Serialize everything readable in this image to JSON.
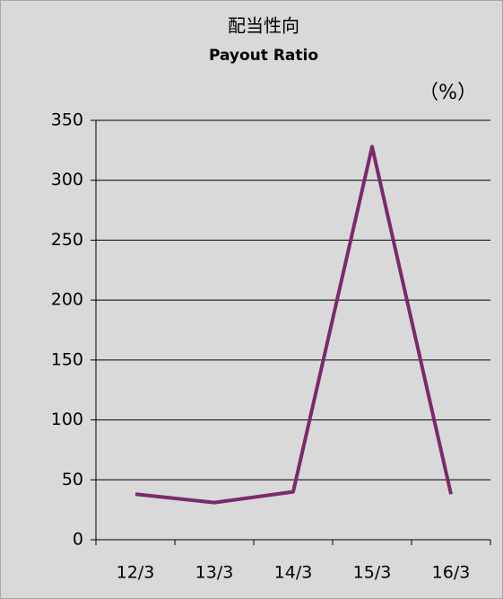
{
  "chart_data": {
    "type": "line",
    "title": "配当性向",
    "subtitle": "Payout Ratio",
    "y_unit": "（%）",
    "categories": [
      "12/3",
      "13/3",
      "14/3",
      "15/3",
      "16/3"
    ],
    "series": [
      {
        "name": "Payout Ratio",
        "color": "#7b2a6b",
        "values": [
          38,
          31,
          40,
          328,
          38
        ]
      }
    ],
    "ylim": [
      0,
      350
    ],
    "yticks": [
      0,
      50,
      100,
      150,
      200,
      250,
      300,
      350
    ],
    "grid": true
  }
}
